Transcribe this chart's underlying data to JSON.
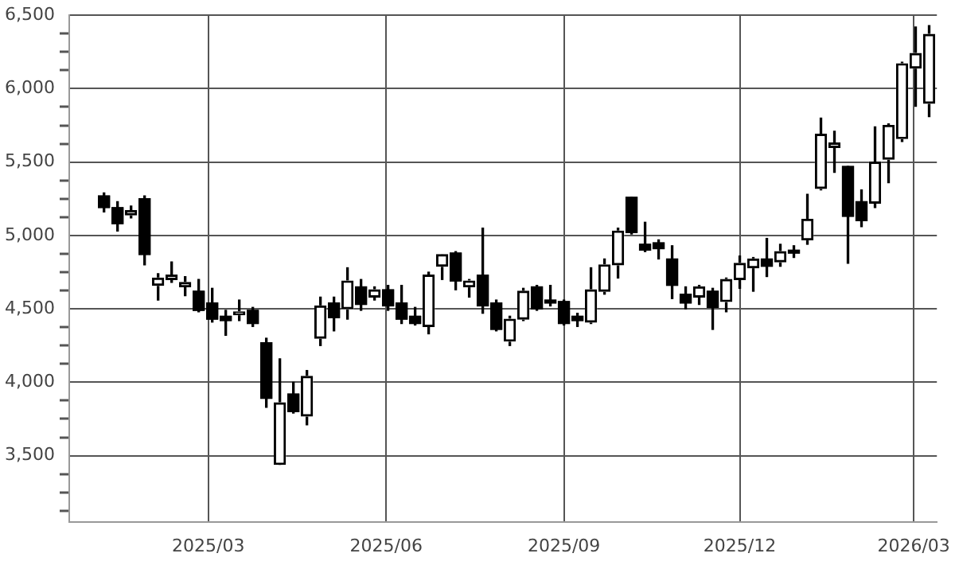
{
  "chart_data": {
    "type": "candlestick",
    "x": [
      "2025-01-06",
      "2025-01-13",
      "2025-01-20",
      "2025-01-27",
      "2025-02-03",
      "2025-02-10",
      "2025-02-17",
      "2025-02-24",
      "2025-03-03",
      "2025-03-10",
      "2025-03-17",
      "2025-03-24",
      "2025-03-31",
      "2025-04-07",
      "2025-04-14",
      "2025-04-21",
      "2025-04-28",
      "2025-05-05",
      "2025-05-12",
      "2025-05-19",
      "2025-05-26",
      "2025-06-02",
      "2025-06-09",
      "2025-06-16",
      "2025-06-23",
      "2025-06-30",
      "2025-07-07",
      "2025-07-14",
      "2025-07-21",
      "2025-07-28",
      "2025-08-04",
      "2025-08-11",
      "2025-08-18",
      "2025-08-25",
      "2025-09-01",
      "2025-09-08",
      "2025-09-15",
      "2025-09-22",
      "2025-09-29",
      "2025-10-06",
      "2025-10-13",
      "2025-10-20",
      "2025-10-27",
      "2025-11-03",
      "2025-11-10",
      "2025-11-17",
      "2025-11-24",
      "2025-12-01",
      "2025-12-08",
      "2025-12-15",
      "2025-12-22",
      "2025-12-29",
      "2026-01-05",
      "2026-01-12",
      "2026-01-19",
      "2026-01-26",
      "2026-02-02",
      "2026-02-09",
      "2026-02-16",
      "2026-02-23",
      "2026-03-02",
      "2026-03-09"
    ],
    "ohlc": [
      [
        5270,
        5290,
        5160,
        5190
      ],
      [
        5190,
        5230,
        5030,
        5080
      ],
      [
        5140,
        5200,
        5120,
        5170
      ],
      [
        5250,
        5270,
        4800,
        4870
      ],
      [
        4660,
        4740,
        4560,
        4710
      ],
      [
        4700,
        4820,
        4680,
        4730
      ],
      [
        4650,
        4720,
        4590,
        4680
      ],
      [
        4620,
        4700,
        4480,
        4490
      ],
      [
        4540,
        4640,
        4410,
        4430
      ],
      [
        4450,
        4490,
        4320,
        4420
      ],
      [
        4460,
        4560,
        4420,
        4480
      ],
      [
        4490,
        4510,
        4380,
        4400
      ],
      [
        4270,
        4300,
        3830,
        3890
      ],
      [
        3440,
        4160,
        3440,
        3860
      ],
      [
        3920,
        4000,
        3790,
        3800
      ],
      [
        3770,
        4080,
        3710,
        4040
      ],
      [
        4300,
        4580,
        4250,
        4520
      ],
      [
        4540,
        4580,
        4350,
        4440
      ],
      [
        4500,
        4780,
        4430,
        4690
      ],
      [
        4650,
        4700,
        4490,
        4530
      ],
      [
        4580,
        4650,
        4560,
        4630
      ],
      [
        4630,
        4660,
        4490,
        4520
      ],
      [
        4540,
        4660,
        4400,
        4430
      ],
      [
        4450,
        4510,
        4390,
        4400
      ],
      [
        4380,
        4750,
        4330,
        4730
      ],
      [
        4790,
        4870,
        4700,
        4870
      ],
      [
        4880,
        4890,
        4630,
        4690
      ],
      [
        4650,
        4700,
        4580,
        4690
      ],
      [
        4730,
        5050,
        4470,
        4520
      ],
      [
        4540,
        4560,
        4350,
        4360
      ],
      [
        4280,
        4450,
        4250,
        4430
      ],
      [
        4430,
        4640,
        4420,
        4620
      ],
      [
        4650,
        4660,
        4490,
        4500
      ],
      [
        4560,
        4660,
        4520,
        4540
      ],
      [
        4550,
        4560,
        4390,
        4400
      ],
      [
        4450,
        4470,
        4380,
        4420
      ],
      [
        4410,
        4780,
        4400,
        4630
      ],
      [
        4620,
        4840,
        4600,
        4800
      ],
      [
        4800,
        5050,
        4710,
        5030
      ],
      [
        5260,
        5260,
        5010,
        5020
      ],
      [
        4940,
        5090,
        4890,
        4900
      ],
      [
        4950,
        4970,
        4840,
        4910
      ],
      [
        4840,
        4930,
        4570,
        4660
      ],
      [
        4600,
        4650,
        4500,
        4540
      ],
      [
        4580,
        4660,
        4530,
        4650
      ],
      [
        4620,
        4640,
        4360,
        4510
      ],
      [
        4550,
        4710,
        4480,
        4700
      ],
      [
        4700,
        4860,
        4640,
        4810
      ],
      [
        4780,
        4850,
        4620,
        4840
      ],
      [
        4840,
        4980,
        4720,
        4790
      ],
      [
        4820,
        4940,
        4790,
        4890
      ],
      [
        4900,
        4930,
        4850,
        4880
      ],
      [
        4970,
        5280,
        4940,
        5110
      ],
      [
        5320,
        5800,
        5310,
        5690
      ],
      [
        5600,
        5710,
        5430,
        5630
      ],
      [
        5470,
        5470,
        4810,
        5130
      ],
      [
        5230,
        5310,
        5060,
        5100
      ],
      [
        5220,
        5740,
        5190,
        5500
      ],
      [
        5520,
        5760,
        5360,
        5750
      ],
      [
        5660,
        6180,
        5640,
        6170
      ],
      [
        6140,
        6420,
        5880,
        6240
      ],
      [
        5900,
        6430,
        5810,
        6370
      ]
    ],
    "colors": [
      "#000000",
      "#000000",
      "#ffffff",
      "#000000",
      "#ffffff",
      "#ffffff",
      "#ffffff",
      "#000000",
      "#000000",
      "#000000",
      "#ffffff",
      "#000000",
      "#000000",
      "#ffffff",
      "#000000",
      "#ffffff",
      "#ffffff",
      "#000000",
      "#ffffff",
      "#000000",
      "#ffffff",
      "#000000",
      "#000000",
      "#000000",
      "#ffffff",
      "#ffffff",
      "#000000",
      "#ffffff",
      "#000000",
      "#000000",
      "#ffffff",
      "#ffffff",
      "#000000",
      "#000000",
      "#000000",
      "#000000",
      "#ffffff",
      "#ffffff",
      "#ffffff",
      "#000000",
      "#000000",
      "#000000",
      "#000000",
      "#000000",
      "#ffffff",
      "#000000",
      "#ffffff",
      "#ffffff",
      "#ffffff",
      "#000000",
      "#ffffff",
      "#000000",
      "#ffffff",
      "#ffffff",
      "#ffffff",
      "#000000",
      "#000000",
      "#ffffff",
      "#ffffff",
      "#ffffff",
      "#ffffff",
      "#ffffff"
    ],
    "color": "#000000",
    "xlim": [
      "2024-12-19",
      "2026-03-13"
    ],
    "xticks": [
      {
        "value": "2025-03",
        "label": "2025/03"
      },
      {
        "value": "2025-06",
        "label": "2025/06"
      },
      {
        "value": "2025-09",
        "label": "2025/09"
      },
      {
        "value": "2025-12",
        "label": "2025/12"
      },
      {
        "value": "2026-03",
        "label": "2026/03"
      }
    ],
    "ylim": [
      3050,
      6500
    ],
    "yticks": [
      {
        "value": 3125,
        "label": null
      },
      {
        "value": 3250,
        "label": null
      },
      {
        "value": 3375,
        "label": null
      },
      {
        "value": 3500,
        "label": "3,500"
      },
      {
        "value": 3625,
        "label": null
      },
      {
        "value": 3750,
        "label": null
      },
      {
        "value": 3875,
        "label": null
      },
      {
        "value": 4000,
        "label": "4,000"
      },
      {
        "value": 4125,
        "label": null
      },
      {
        "value": 4250,
        "label": null
      },
      {
        "value": 4375,
        "label": null
      },
      {
        "value": 4500,
        "label": "4,500"
      },
      {
        "value": 4625,
        "label": null
      },
      {
        "value": 4750,
        "label": null
      },
      {
        "value": 4875,
        "label": null
      },
      {
        "value": 5000,
        "label": "5,000"
      },
      {
        "value": 5125,
        "label": null
      },
      {
        "value": 5250,
        "label": null
      },
      {
        "value": 5375,
        "label": null
      },
      {
        "value": 5500,
        "label": "5,500"
      },
      {
        "value": 5625,
        "label": null
      },
      {
        "value": 5750,
        "label": null
      },
      {
        "value": 5875,
        "label": null
      },
      {
        "value": 6000,
        "label": "6,000"
      },
      {
        "value": 6125,
        "label": null
      },
      {
        "value": 6250,
        "label": null
      },
      {
        "value": 6375,
        "label": null
      },
      {
        "value": 6500,
        "label": "6,500"
      }
    ],
    "grid": true
  }
}
